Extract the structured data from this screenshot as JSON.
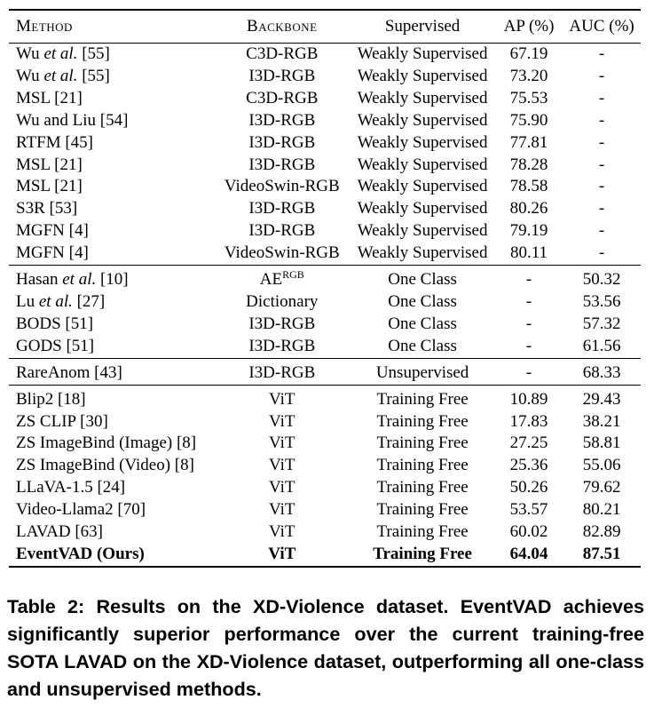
{
  "table": {
    "headers": {
      "method": "Method",
      "backbone": "Backbone",
      "supervised": "Supervised",
      "ap": "AP (%)",
      "auc": "AUC (%)"
    },
    "groups": [
      {
        "rows": [
          {
            "method_pre": "Wu ",
            "method_it": "et al.",
            "method_post": " [55]",
            "backbone": "C3D-RGB",
            "backbone_sup": "",
            "supervised": "Weakly Supervised",
            "ap": "67.19",
            "auc": "-"
          },
          {
            "method_pre": "Wu ",
            "method_it": "et al.",
            "method_post": " [55]",
            "backbone": "I3D-RGB",
            "backbone_sup": "",
            "supervised": "Weakly Supervised",
            "ap": "73.20",
            "auc": "-"
          },
          {
            "method_pre": "MSL [21]",
            "method_it": "",
            "method_post": "",
            "backbone": "C3D-RGB",
            "backbone_sup": "",
            "supervised": "Weakly Supervised",
            "ap": "75.53",
            "auc": "-"
          },
          {
            "method_pre": "Wu and Liu [54]",
            "method_it": "",
            "method_post": "",
            "backbone": "I3D-RGB",
            "backbone_sup": "",
            "supervised": "Weakly Supervised",
            "ap": "75.90",
            "auc": "-"
          },
          {
            "method_pre": "RTFM [45]",
            "method_it": "",
            "method_post": "",
            "backbone": "I3D-RGB",
            "backbone_sup": "",
            "supervised": "Weakly Supervised",
            "ap": "77.81",
            "auc": "-"
          },
          {
            "method_pre": "MSL [21]",
            "method_it": "",
            "method_post": "",
            "backbone": "I3D-RGB",
            "backbone_sup": "",
            "supervised": "Weakly Supervised",
            "ap": "78.28",
            "auc": "-"
          },
          {
            "method_pre": "MSL [21]",
            "method_it": "",
            "method_post": "",
            "backbone": "VideoSwin-RGB",
            "backbone_sup": "",
            "supervised": "Weakly Supervised",
            "ap": "78.58",
            "auc": "-"
          },
          {
            "method_pre": "S3R [53]",
            "method_it": "",
            "method_post": "",
            "backbone": "I3D-RGB",
            "backbone_sup": "",
            "supervised": "Weakly Supervised",
            "ap": "80.26",
            "auc": "-"
          },
          {
            "method_pre": "MGFN [4]",
            "method_it": "",
            "method_post": "",
            "backbone": "I3D-RGB",
            "backbone_sup": "",
            "supervised": "Weakly Supervised",
            "ap": "79.19",
            "auc": "-"
          },
          {
            "method_pre": "MGFN [4]",
            "method_it": "",
            "method_post": "",
            "backbone": "VideoSwin-RGB",
            "backbone_sup": "",
            "supervised": "Weakly Supervised",
            "ap": "80.11",
            "auc": "-"
          }
        ]
      },
      {
        "rows": [
          {
            "method_pre": "Hasan ",
            "method_it": "et al.",
            "method_post": " [10]",
            "backbone": "AE",
            "backbone_sup": "RGB",
            "supervised": "One Class",
            "ap": "-",
            "auc": "50.32"
          },
          {
            "method_pre": "Lu ",
            "method_it": "et al.",
            "method_post": " [27]",
            "backbone": "Dictionary",
            "backbone_sup": "",
            "supervised": "One Class",
            "ap": "-",
            "auc": "53.56"
          },
          {
            "method_pre": "BODS [51]",
            "method_it": "",
            "method_post": "",
            "backbone": "I3D-RGB",
            "backbone_sup": "",
            "supervised": "One Class",
            "ap": "-",
            "auc": "57.32"
          },
          {
            "method_pre": "GODS [51]",
            "method_it": "",
            "method_post": "",
            "backbone": "I3D-RGB",
            "backbone_sup": "",
            "supervised": "One Class",
            "ap": "-",
            "auc": "61.56"
          }
        ]
      },
      {
        "rows": [
          {
            "method_pre": "RareAnom [43]",
            "method_it": "",
            "method_post": "",
            "backbone": "I3D-RGB",
            "backbone_sup": "",
            "supervised": "Unsupervised",
            "ap": "-",
            "auc": "68.33"
          }
        ]
      },
      {
        "rows": [
          {
            "method_pre": "Blip2 [18]",
            "method_it": "",
            "method_post": "",
            "backbone": "ViT",
            "backbone_sup": "",
            "supervised": "Training Free",
            "ap": "10.89",
            "auc": "29.43"
          },
          {
            "method_pre": "ZS CLIP [30]",
            "method_it": "",
            "method_post": "",
            "backbone": "ViT",
            "backbone_sup": "",
            "supervised": "Training Free",
            "ap": "17.83",
            "auc": "38.21"
          },
          {
            "method_pre": "ZS ImageBind (Image) [8]",
            "method_it": "",
            "method_post": "",
            "backbone": "ViT",
            "backbone_sup": "",
            "supervised": "Training Free",
            "ap": "27.25",
            "auc": "58.81"
          },
          {
            "method_pre": "ZS ImageBind (Video) [8]",
            "method_it": "",
            "method_post": "",
            "backbone": "ViT",
            "backbone_sup": "",
            "supervised": "Training Free",
            "ap": "25.36",
            "auc": "55.06"
          },
          {
            "method_pre": "LLaVA-1.5 [24]",
            "method_it": "",
            "method_post": "",
            "backbone": "ViT",
            "backbone_sup": "",
            "supervised": "Training Free",
            "ap": "50.26",
            "auc": "79.62"
          },
          {
            "method_pre": "Video-Llama2 [70]",
            "method_it": "",
            "method_post": "",
            "backbone": "ViT",
            "backbone_sup": "",
            "supervised": "Training Free",
            "ap": "53.57",
            "auc": "80.21"
          },
          {
            "method_pre": "LAVAD [63]",
            "method_it": "",
            "method_post": "",
            "backbone": "ViT",
            "backbone_sup": "",
            "supervised": "Training Free",
            "ap": "60.02",
            "auc": "82.89"
          },
          {
            "method_pre": "EventVAD (Ours)",
            "method_it": "",
            "method_post": "",
            "backbone": "ViT",
            "backbone_sup": "",
            "supervised": "Training Free",
            "ap": "64.04",
            "auc": "87.51",
            "bold": true
          }
        ]
      }
    ]
  },
  "caption": "Table 2: Results on the XD-Violence dataset. EventVAD achieves significantly superior performance over the current training-free SOTA LAVAD on the XD-Violence dataset, outperforming all one-class and unsupervised methods."
}
